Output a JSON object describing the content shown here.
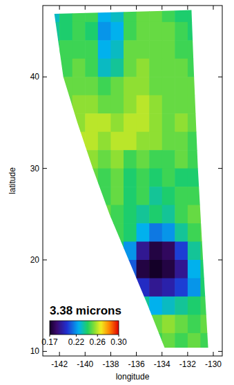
{
  "chart_data": {
    "type": "heatmap",
    "x_label": "longitude",
    "y_label": "latitude",
    "xlim": [
      -143.3,
      -129.3
    ],
    "xticks": [
      -142,
      -140,
      -138,
      -136,
      -134,
      -132,
      -130
    ],
    "ylim": [
      9.5,
      47.8
    ],
    "yticks": [
      10,
      20,
      30,
      40
    ],
    "swath": {
      "lon": [
        -142.4,
        -141.7,
        -140.6,
        -139.4,
        -138.1,
        -136.6,
        -135.1,
        -133.8,
        -130.4,
        -130.8,
        -131.2,
        -131.5,
        -131.7
      ],
      "lat": [
        46.9,
        40,
        35,
        30,
        25,
        20,
        15,
        10.4,
        10.4,
        20,
        30,
        40,
        47.3
      ]
    },
    "x": [
      -142.5,
      -141.5,
      -140.5,
      -139.5,
      -138.5,
      -137.5,
      -136.5,
      -135.5,
      -134.5,
      -133.5,
      -132.5,
      -131.5,
      -130.5
    ],
    "y": [
      47,
      45,
      43,
      41,
      39,
      37,
      35,
      33,
      31,
      29,
      27,
      25,
      23,
      21,
      19,
      17,
      15,
      13,
      11
    ],
    "cells": [
      [
        0.23,
        0.24,
        0.245,
        0.245,
        0.225,
        0.23,
        0.245,
        0.25,
        0.25,
        0.245,
        0.24,
        0.24,
        null
      ],
      [
        0.235,
        0.24,
        0.245,
        0.24,
        0.22,
        0.225,
        0.245,
        0.25,
        0.25,
        0.25,
        0.245,
        0.24,
        null
      ],
      [
        0.24,
        0.245,
        0.245,
        0.245,
        0.225,
        0.23,
        0.25,
        0.25,
        0.25,
        0.25,
        0.245,
        0.245,
        null
      ],
      [
        null,
        0.245,
        0.25,
        0.245,
        0.23,
        0.235,
        0.25,
        0.255,
        0.25,
        0.25,
        0.25,
        0.245,
        null
      ],
      [
        null,
        0.25,
        0.25,
        0.25,
        0.245,
        0.25,
        0.255,
        0.255,
        0.25,
        0.25,
        0.25,
        0.25,
        null
      ],
      [
        null,
        0.25,
        0.255,
        0.255,
        0.25,
        0.25,
        0.255,
        0.26,
        0.255,
        0.25,
        0.25,
        0.25,
        null
      ],
      [
        null,
        null,
        0.255,
        0.26,
        0.26,
        0.255,
        0.26,
        0.26,
        0.255,
        0.25,
        0.255,
        0.25,
        null
      ],
      [
        null,
        null,
        0.26,
        0.26,
        0.255,
        0.26,
        0.26,
        0.255,
        0.255,
        0.25,
        0.25,
        0.245,
        null
      ],
      [
        null,
        null,
        null,
        0.255,
        0.25,
        0.255,
        0.245,
        0.25,
        0.245,
        0.245,
        0.25,
        0.245,
        null
      ],
      [
        null,
        null,
        null,
        0.25,
        0.245,
        0.25,
        0.24,
        0.245,
        0.24,
        0.245,
        0.24,
        0.24,
        null
      ],
      [
        null,
        null,
        null,
        null,
        0.245,
        0.25,
        0.24,
        0.245,
        0.235,
        0.24,
        0.245,
        0.245,
        null
      ],
      [
        null,
        null,
        null,
        null,
        0.25,
        0.245,
        0.24,
        0.235,
        0.24,
        0.235,
        0.245,
        0.25,
        null
      ],
      [
        null,
        null,
        null,
        null,
        null,
        0.245,
        0.24,
        0.225,
        0.215,
        0.22,
        0.235,
        0.245,
        0.25
      ],
      [
        null,
        null,
        null,
        null,
        null,
        0.24,
        0.22,
        0.19,
        0.175,
        0.18,
        0.205,
        0.235,
        0.245
      ],
      [
        null,
        null,
        null,
        null,
        null,
        null,
        0.21,
        0.175,
        0.17,
        0.175,
        0.19,
        0.225,
        0.24
      ],
      [
        null,
        null,
        null,
        null,
        null,
        null,
        null,
        0.2,
        0.19,
        0.195,
        0.205,
        0.22,
        0.24
      ],
      [
        null,
        null,
        null,
        null,
        null,
        null,
        null,
        0.235,
        0.225,
        0.23,
        0.235,
        0.24,
        0.245
      ],
      [
        null,
        null,
        null,
        null,
        null,
        null,
        null,
        null,
        0.25,
        0.255,
        0.25,
        0.245,
        0.25
      ],
      [
        null,
        null,
        null,
        null,
        null,
        null,
        null,
        null,
        0.245,
        0.25,
        0.245,
        0.25,
        0.245
      ]
    ],
    "colorbar": {
      "label": "3.38 microns",
      "range": [
        0.17,
        0.3
      ],
      "ticks": [
        0.17,
        0.22,
        0.26,
        0.3
      ]
    }
  }
}
